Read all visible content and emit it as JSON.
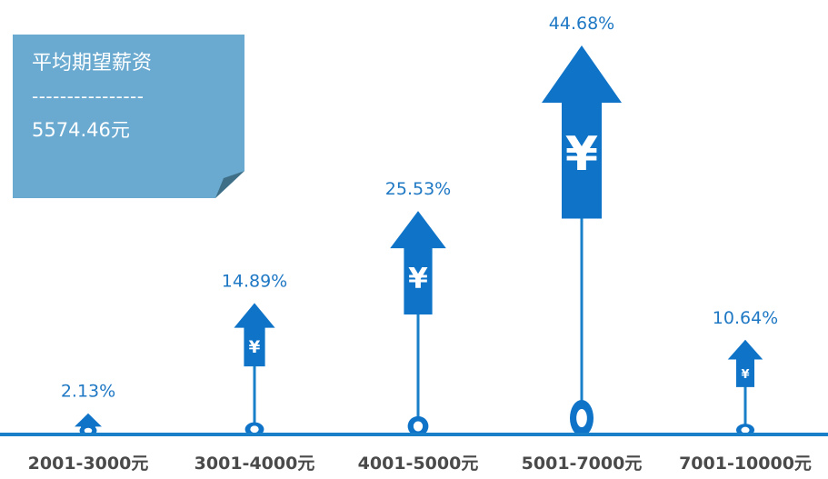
{
  "note": {
    "title": "平均期望薪资",
    "divider": "----------------",
    "value": "5574.46元"
  },
  "colors": {
    "accent": "#0f74c8",
    "stem": "#1a7fc9",
    "note_bg": "#6aaad0",
    "note_fold": "#3f6f86",
    "baseline": "#1a7fc9",
    "category_text": "#4a4a4a"
  },
  "icon": "yen-sign",
  "chart_data": {
    "type": "bar",
    "categories": [
      "2001-3000元",
      "3001-4000元",
      "4001-5000元",
      "5001-7000元",
      "7001-10000元"
    ],
    "values": [
      2.13,
      14.89,
      25.53,
      44.68,
      10.64
    ],
    "value_labels": [
      "2.13%",
      "14.89%",
      "25.53%",
      "44.68%",
      "10.64%"
    ],
    "unit": "%",
    "ylim": [
      0,
      44.68
    ],
    "grid": false,
    "legend": "none"
  }
}
